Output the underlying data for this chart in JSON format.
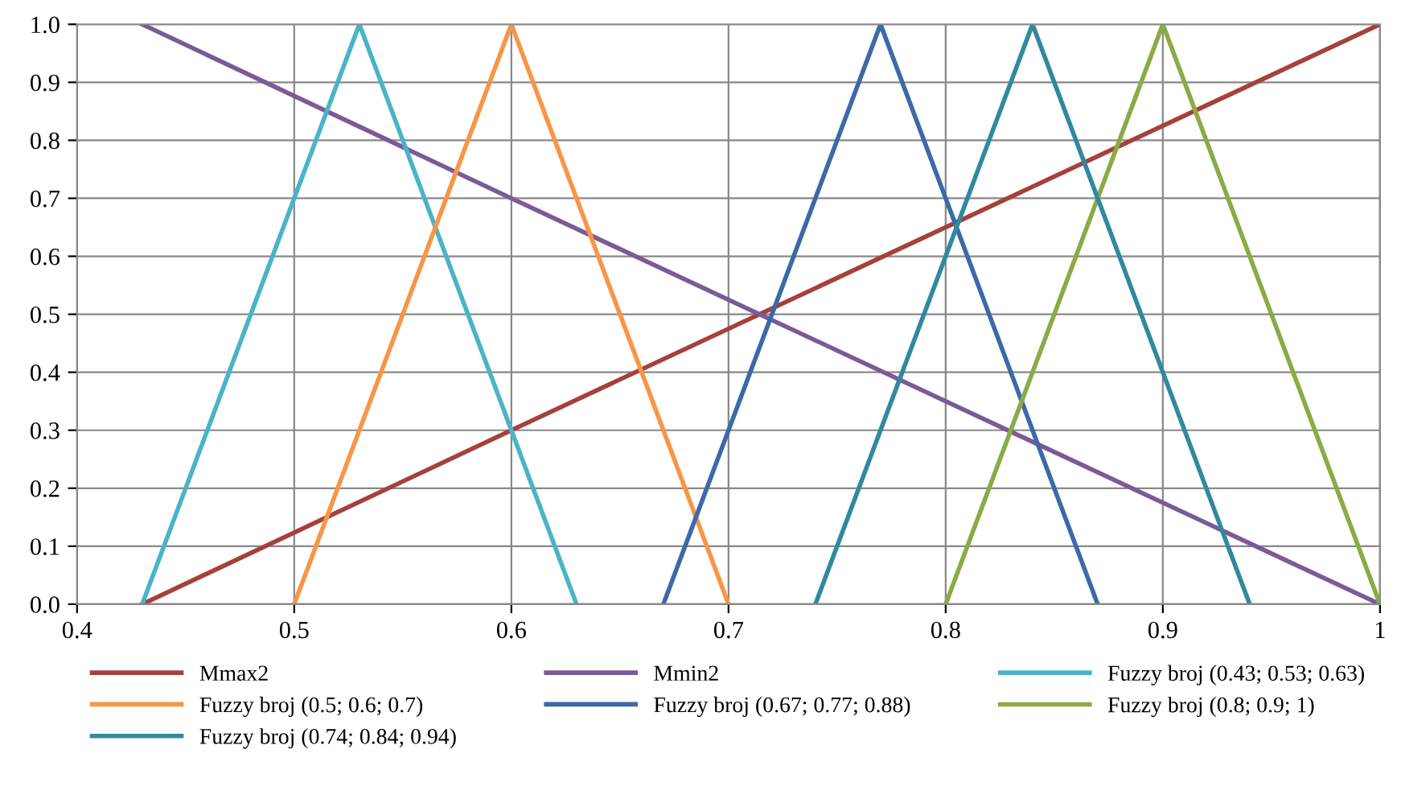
{
  "chart_data": {
    "type": "line",
    "xlim": [
      0.4,
      1
    ],
    "ylim": [
      0,
      1
    ],
    "xticks": [
      {
        "value": 0.4,
        "label": "0.4"
      },
      {
        "value": 0.5,
        "label": "0.5"
      },
      {
        "value": 0.6,
        "label": "0.6"
      },
      {
        "value": 0.7,
        "label": "0.7"
      },
      {
        "value": 0.8,
        "label": "0.8"
      },
      {
        "value": 0.9,
        "label": "0.9"
      },
      {
        "value": 1,
        "label": "1"
      }
    ],
    "yticks": [
      {
        "value": 0,
        "label": "0.0"
      },
      {
        "value": 0.1,
        "label": "0.1"
      },
      {
        "value": 0.2,
        "label": "0.2"
      },
      {
        "value": 0.3,
        "label": "0.3"
      },
      {
        "value": 0.4,
        "label": "0.4"
      },
      {
        "value": 0.5,
        "label": "0.5"
      },
      {
        "value": 0.6,
        "label": "0.6"
      },
      {
        "value": 0.7,
        "label": "0.7"
      },
      {
        "value": 0.8,
        "label": "0.8"
      },
      {
        "value": 0.9,
        "label": "0.9"
      },
      {
        "value": 1,
        "label": "1.0"
      }
    ],
    "grid": true,
    "legend": "bottom",
    "marker": "none",
    "line_style": "solid",
    "series": [
      {
        "name": "Mmax2",
        "color": "#a5413b",
        "x": [
          0.43,
          0.6,
          1
        ],
        "values": [
          0,
          0.3,
          1
        ]
      },
      {
        "name": "Mmin2",
        "color": "#7b5a98",
        "x": [
          0.43,
          0.6,
          1
        ],
        "values": [
          1,
          0.7,
          0
        ]
      },
      {
        "name": "Fuzzy broj (0.43; 0.53; 0.63)",
        "color": "#4bb3c9",
        "x": [
          0.43,
          0.53,
          0.63
        ],
        "values": [
          0,
          1,
          0
        ]
      },
      {
        "name": "Fuzzy broj (0.5; 0.6; 0.7)",
        "color": "#f79646",
        "x": [
          0.5,
          0.6,
          0.7
        ],
        "values": [
          0,
          1,
          0
        ]
      },
      {
        "name": "Fuzzy broj (0.67; 0.77; 0.88)",
        "color": "#3c6aa8",
        "x": [
          0.67,
          0.77,
          0.87
        ],
        "values": [
          0,
          1,
          0
        ]
      },
      {
        "name": "Fuzzy broj (0.8; 0.9; 1)",
        "color": "#8aab45",
        "x": [
          0.8,
          0.9,
          1
        ],
        "values": [
          0,
          1,
          0
        ]
      },
      {
        "name": "Fuzzy broj (0.74; 0.84; 0.94)",
        "color": "#31899f",
        "x": [
          0.74,
          0.84,
          0.94
        ],
        "values": [
          0,
          1,
          0
        ]
      }
    ]
  }
}
